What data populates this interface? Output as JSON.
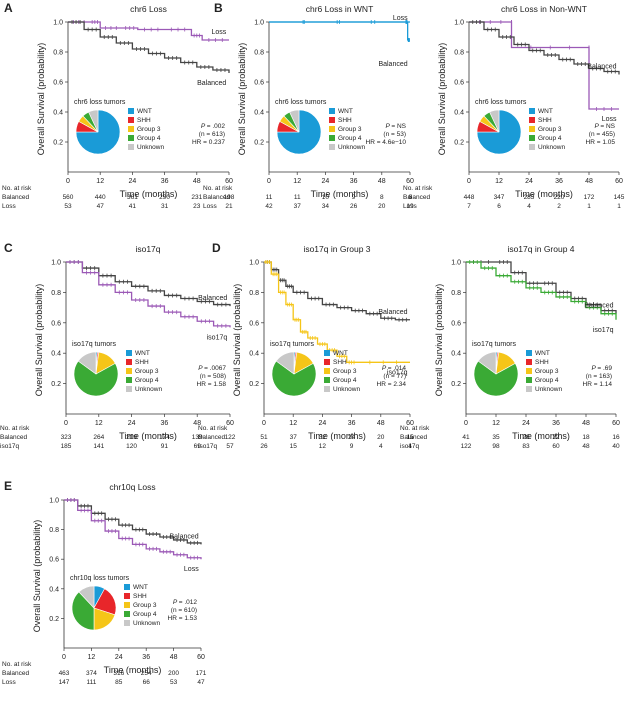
{
  "figure": {
    "y_axis_title": "Overall Survival (probability)",
    "x_axis_title": "Time (months)",
    "risk_header": "No. at risk",
    "p_prefix": "P"
  },
  "chart_data": [
    {
      "type": "line",
      "panel_letter": "A",
      "title": "chr6 Loss",
      "xlim": [
        0,
        60
      ],
      "ylim": [
        0,
        1.0
      ],
      "x_ticks": [
        0,
        12,
        24,
        36,
        48,
        60
      ],
      "y_ticks": [
        0.2,
        0.4,
        0.6,
        0.8,
        1.0
      ],
      "series": [
        {
          "name": "Loss",
          "color": "#9b59b6",
          "x": [
            0,
            8,
            12,
            20,
            26,
            36,
            46,
            50,
            60
          ],
          "y": [
            1.0,
            1.0,
            0.96,
            0.96,
            0.95,
            0.95,
            0.91,
            0.88,
            0.88
          ]
        },
        {
          "name": "Balanced",
          "color": "#444444",
          "x": [
            0,
            6,
            12,
            18,
            24,
            30,
            36,
            42,
            48,
            54,
            60
          ],
          "y": [
            1.0,
            0.95,
            0.9,
            0.86,
            0.82,
            0.79,
            0.76,
            0.73,
            0.7,
            0.68,
            0.66
          ]
        }
      ],
      "series_labels": [
        "Loss",
        "Balanced"
      ],
      "pie": {
        "title": "chr6 loss tumors",
        "legend": [
          "WNT",
          "SHH",
          "Group 3",
          "Group 4",
          "Unknown"
        ],
        "colors": [
          "#1a9bd7",
          "#e8262a",
          "#f5c518",
          "#3aaa35",
          "#c8c8c8"
        ],
        "values": [
          75,
          8,
          5,
          5,
          7
        ]
      },
      "stats": {
        "p": "= .002",
        "n": "(n = 613)",
        "hr": "HR = 0.237"
      },
      "risk": {
        "labels": [
          "Balanced",
          "Loss"
        ],
        "rows": [
          [
            560,
            440,
            361,
            290,
            231,
            198
          ],
          [
            53,
            47,
            41,
            31,
            23,
            21
          ]
        ]
      }
    },
    {
      "type": "line",
      "panel_letter": "B",
      "title": "chr6 Loss in WNT",
      "xlim": [
        0,
        60
      ],
      "ylim": [
        0,
        1.0
      ],
      "x_ticks": [
        0,
        12,
        24,
        36,
        48,
        60
      ],
      "y_ticks": [
        0.2,
        0.4,
        0.6,
        0.8,
        1.0
      ],
      "series": [
        {
          "name": "Loss",
          "color": "#1a9bd7",
          "x": [
            0,
            60
          ],
          "y": [
            1.0,
            1.0
          ]
        },
        {
          "name": "Balanced",
          "color": "#1a9bd7",
          "x": [
            0,
            58,
            59,
            60
          ],
          "y": [
            1.0,
            1.0,
            0.88,
            0.88
          ]
        }
      ],
      "series_labels": [
        "Loss",
        "Balanced"
      ],
      "pie": {
        "title": "chr6 loss tumors",
        "legend": [
          "WNT",
          "SHH",
          "Group 3",
          "Group 4",
          "Unknown"
        ],
        "colors": [
          "#1a9bd7",
          "#e8262a",
          "#f5c518",
          "#3aaa35",
          "#c8c8c8"
        ],
        "values": [
          75,
          8,
          5,
          5,
          7
        ]
      },
      "stats": {
        "p": "= NS",
        "n": "(n = 53)",
        "hr": "HR = 4.6e−10"
      },
      "risk": {
        "labels": [
          "Balanced",
          "Loss"
        ],
        "rows": [
          [
            11,
            11,
            10,
            9,
            8,
            6
          ],
          [
            42,
            37,
            34,
            26,
            20,
            19
          ]
        ]
      }
    },
    {
      "type": "line",
      "panel_letter": "",
      "title": "chr6 Loss in Non-WNT",
      "xlim": [
        0,
        60
      ],
      "ylim": [
        0,
        1.0
      ],
      "x_ticks": [
        0,
        12,
        24,
        36,
        48,
        60
      ],
      "y_ticks": [
        0.2,
        0.4,
        0.6,
        0.8,
        1.0
      ],
      "series": [
        {
          "name": "Loss",
          "color": "#9b59b6",
          "x": [
            0,
            17,
            17,
            48,
            48,
            60
          ],
          "y": [
            1.0,
            1.0,
            0.83,
            0.83,
            0.42,
            0.42
          ]
        },
        {
          "name": "Balanced",
          "color": "#444444",
          "x": [
            0,
            6,
            12,
            18,
            24,
            30,
            36,
            42,
            48,
            54,
            60
          ],
          "y": [
            1.0,
            0.95,
            0.9,
            0.85,
            0.81,
            0.78,
            0.75,
            0.72,
            0.69,
            0.67,
            0.65
          ]
        }
      ],
      "series_labels": [
        "Balanced",
        "Loss"
      ],
      "pie": {
        "title": "chr6 loss tumors",
        "legend": [
          "WNT",
          "SHH",
          "Group 3",
          "Group 4",
          "Unknown"
        ],
        "colors": [
          "#1a9bd7",
          "#e8262a",
          "#f5c518",
          "#3aaa35",
          "#c8c8c8"
        ],
        "values": [
          75,
          8,
          5,
          5,
          7
        ]
      },
      "stats": {
        "p": "= NS",
        "n": "(n = 455)",
        "hr": "HR = 1.05"
      },
      "risk": {
        "labels": [
          "Balanced",
          "Loss"
        ],
        "rows": [
          [
            448,
            347,
            283,
            220,
            172,
            145
          ],
          [
            7,
            6,
            4,
            2,
            1,
            1
          ]
        ]
      }
    },
    {
      "type": "line",
      "panel_letter": "C",
      "title": "iso17q",
      "xlim": [
        0,
        60
      ],
      "ylim": [
        0,
        1.0
      ],
      "x_ticks": [
        0,
        12,
        24,
        36,
        48,
        60
      ],
      "y_ticks": [
        0.2,
        0.4,
        0.6,
        0.8,
        1.0
      ],
      "series": [
        {
          "name": "Balanced",
          "color": "#444444",
          "x": [
            0,
            6,
            12,
            18,
            24,
            30,
            36,
            42,
            48,
            54,
            60
          ],
          "y": [
            1.0,
            0.96,
            0.91,
            0.87,
            0.84,
            0.81,
            0.78,
            0.76,
            0.74,
            0.72,
            0.71
          ]
        },
        {
          "name": "iso17q",
          "color": "#9b59b6",
          "x": [
            0,
            6,
            12,
            18,
            24,
            30,
            36,
            42,
            48,
            54,
            60
          ],
          "y": [
            1.0,
            0.93,
            0.85,
            0.8,
            0.75,
            0.71,
            0.67,
            0.64,
            0.61,
            0.58,
            0.57
          ]
        }
      ],
      "series_labels": [
        "Balanced",
        "iso17q"
      ],
      "pie": {
        "title": "iso17q tumors",
        "legend": [
          "WNT",
          "SHH",
          "Group 3",
          "Group 4",
          "Unknown"
        ],
        "colors": [
          "#1a9bd7",
          "#e8262a",
          "#f5c518",
          "#3aaa35",
          "#c8c8c8"
        ],
        "values": [
          1,
          1,
          15,
          68,
          15
        ]
      },
      "stats": {
        "p": "= .0067",
        "n": "(n = 508)",
        "hr": "HR = 1.58"
      },
      "risk": {
        "labels": [
          "Balanced",
          "iso17q"
        ],
        "rows": [
          [
            323,
            264,
            219,
            174,
            139,
            122
          ],
          [
            185,
            141,
            120,
            91,
            69,
            57
          ]
        ]
      }
    },
    {
      "type": "line",
      "panel_letter": "D",
      "title": "iso17q in Group 3",
      "xlim": [
        0,
        60
      ],
      "ylim": [
        0,
        1.0
      ],
      "x_ticks": [
        0,
        12,
        24,
        36,
        48,
        60
      ],
      "y_ticks": [
        0.2,
        0.4,
        0.6,
        0.8,
        1.0
      ],
      "series": [
        {
          "name": "Balanced",
          "color": "#444444",
          "x": [
            0,
            3,
            6,
            9,
            12,
            18,
            24,
            30,
            36,
            42,
            48,
            54,
            60
          ],
          "y": [
            1.0,
            0.95,
            0.88,
            0.84,
            0.8,
            0.76,
            0.72,
            0.7,
            0.68,
            0.66,
            0.63,
            0.62,
            0.62
          ]
        },
        {
          "name": "iso17q",
          "color": "#f5c518",
          "x": [
            0,
            3,
            6,
            9,
            12,
            15,
            18,
            22,
            26,
            30,
            34,
            38,
            60
          ],
          "y": [
            1.0,
            0.92,
            0.8,
            0.72,
            0.62,
            0.54,
            0.5,
            0.46,
            0.42,
            0.38,
            0.34,
            0.34,
            0.34
          ]
        }
      ],
      "series_labels": [
        "Balanced",
        "iso17q"
      ],
      "pie": {
        "title": "iso17q tumors",
        "legend": [
          "WNT",
          "SHH",
          "Group 3",
          "Group 4",
          "Unknown"
        ],
        "colors": [
          "#1a9bd7",
          "#e8262a",
          "#f5c518",
          "#3aaa35",
          "#c8c8c8"
        ],
        "values": [
          1,
          1,
          15,
          68,
          15
        ]
      },
      "stats": {
        "p": "= .014",
        "n": "(n = 77)",
        "hr": "HR = 2.34"
      },
      "risk": {
        "labels": [
          "Balanced",
          "iso17q"
        ],
        "rows": [
          [
            51,
            37,
            32,
            24,
            20,
            15
          ],
          [
            26,
            15,
            12,
            9,
            4,
            4
          ]
        ]
      }
    },
    {
      "type": "line",
      "panel_letter": "",
      "title": "iso17q in Group 4",
      "xlim": [
        0,
        60
      ],
      "ylim": [
        0,
        1.0
      ],
      "x_ticks": [
        0,
        12,
        24,
        36,
        48,
        60
      ],
      "y_ticks": [
        0.2,
        0.4,
        0.6,
        0.8,
        1.0
      ],
      "series": [
        {
          "name": "Balanced",
          "color": "#444444",
          "x": [
            0,
            12,
            18,
            24,
            30,
            36,
            42,
            48,
            54,
            60
          ],
          "y": [
            1.0,
            1.0,
            0.93,
            0.86,
            0.86,
            0.8,
            0.76,
            0.72,
            0.68,
            0.66
          ]
        },
        {
          "name": "iso17q",
          "color": "#3aaa35",
          "x": [
            0,
            6,
            12,
            18,
            24,
            30,
            36,
            42,
            48,
            54,
            60
          ],
          "y": [
            1.0,
            0.96,
            0.91,
            0.87,
            0.83,
            0.8,
            0.77,
            0.74,
            0.7,
            0.66,
            0.62
          ]
        }
      ],
      "series_labels": [
        "Balanced",
        "iso17q"
      ],
      "pie": {
        "title": "iso17q tumors",
        "legend": [
          "WNT",
          "SHH",
          "Group 3",
          "Group 4",
          "Unknown"
        ],
        "colors": [
          "#1a9bd7",
          "#e8262a",
          "#f5c518",
          "#3aaa35",
          "#c8c8c8"
        ],
        "values": [
          1,
          1,
          15,
          68,
          15
        ]
      },
      "stats": {
        "p": "= .69",
        "n": "(n = 163)",
        "hr": "HR = 1.14"
      },
      "risk": {
        "labels": [
          "Balanced",
          "iso17q"
        ],
        "rows": [
          [
            41,
            35,
            28,
            22,
            18,
            16
          ],
          [
            122,
            98,
            83,
            60,
            48,
            40
          ]
        ]
      }
    },
    {
      "type": "line",
      "panel_letter": "E",
      "title": "chr10q Loss",
      "xlim": [
        0,
        60
      ],
      "ylim": [
        0,
        1.0
      ],
      "x_ticks": [
        0,
        12,
        24,
        36,
        48,
        60
      ],
      "y_ticks": [
        0.2,
        0.4,
        0.6,
        0.8,
        1.0
      ],
      "series": [
        {
          "name": "Balanced",
          "color": "#444444",
          "x": [
            0,
            6,
            12,
            18,
            24,
            30,
            36,
            42,
            48,
            54,
            60
          ],
          "y": [
            1.0,
            0.96,
            0.91,
            0.87,
            0.83,
            0.8,
            0.77,
            0.75,
            0.73,
            0.71,
            0.7
          ]
        },
        {
          "name": "Loss",
          "color": "#9b59b6",
          "x": [
            0,
            6,
            12,
            18,
            24,
            30,
            36,
            42,
            48,
            54,
            60
          ],
          "y": [
            1.0,
            0.93,
            0.86,
            0.79,
            0.74,
            0.7,
            0.67,
            0.65,
            0.63,
            0.61,
            0.6
          ]
        }
      ],
      "series_labels": [
        "Balanced",
        "Loss"
      ],
      "pie": {
        "title": "chr10q loss tumors",
        "legend": [
          "WNT",
          "SHH",
          "Group 3",
          "Group 4",
          "Unknown"
        ],
        "colors": [
          "#1a9bd7",
          "#e8262a",
          "#f5c518",
          "#3aaa35",
          "#c8c8c8"
        ],
        "values": [
          8,
          22,
          20,
          38,
          12
        ]
      },
      "stats": {
        "p": "= .012",
        "n": "(n = 610)",
        "hr": "HR = 1.53"
      },
      "risk": {
        "labels": [
          "Balanced",
          "Loss"
        ],
        "rows": [
          [
            463,
            374,
            316,
            254,
            200,
            171
          ],
          [
            147,
            111,
            85,
            66,
            53,
            47
          ]
        ]
      }
    }
  ]
}
